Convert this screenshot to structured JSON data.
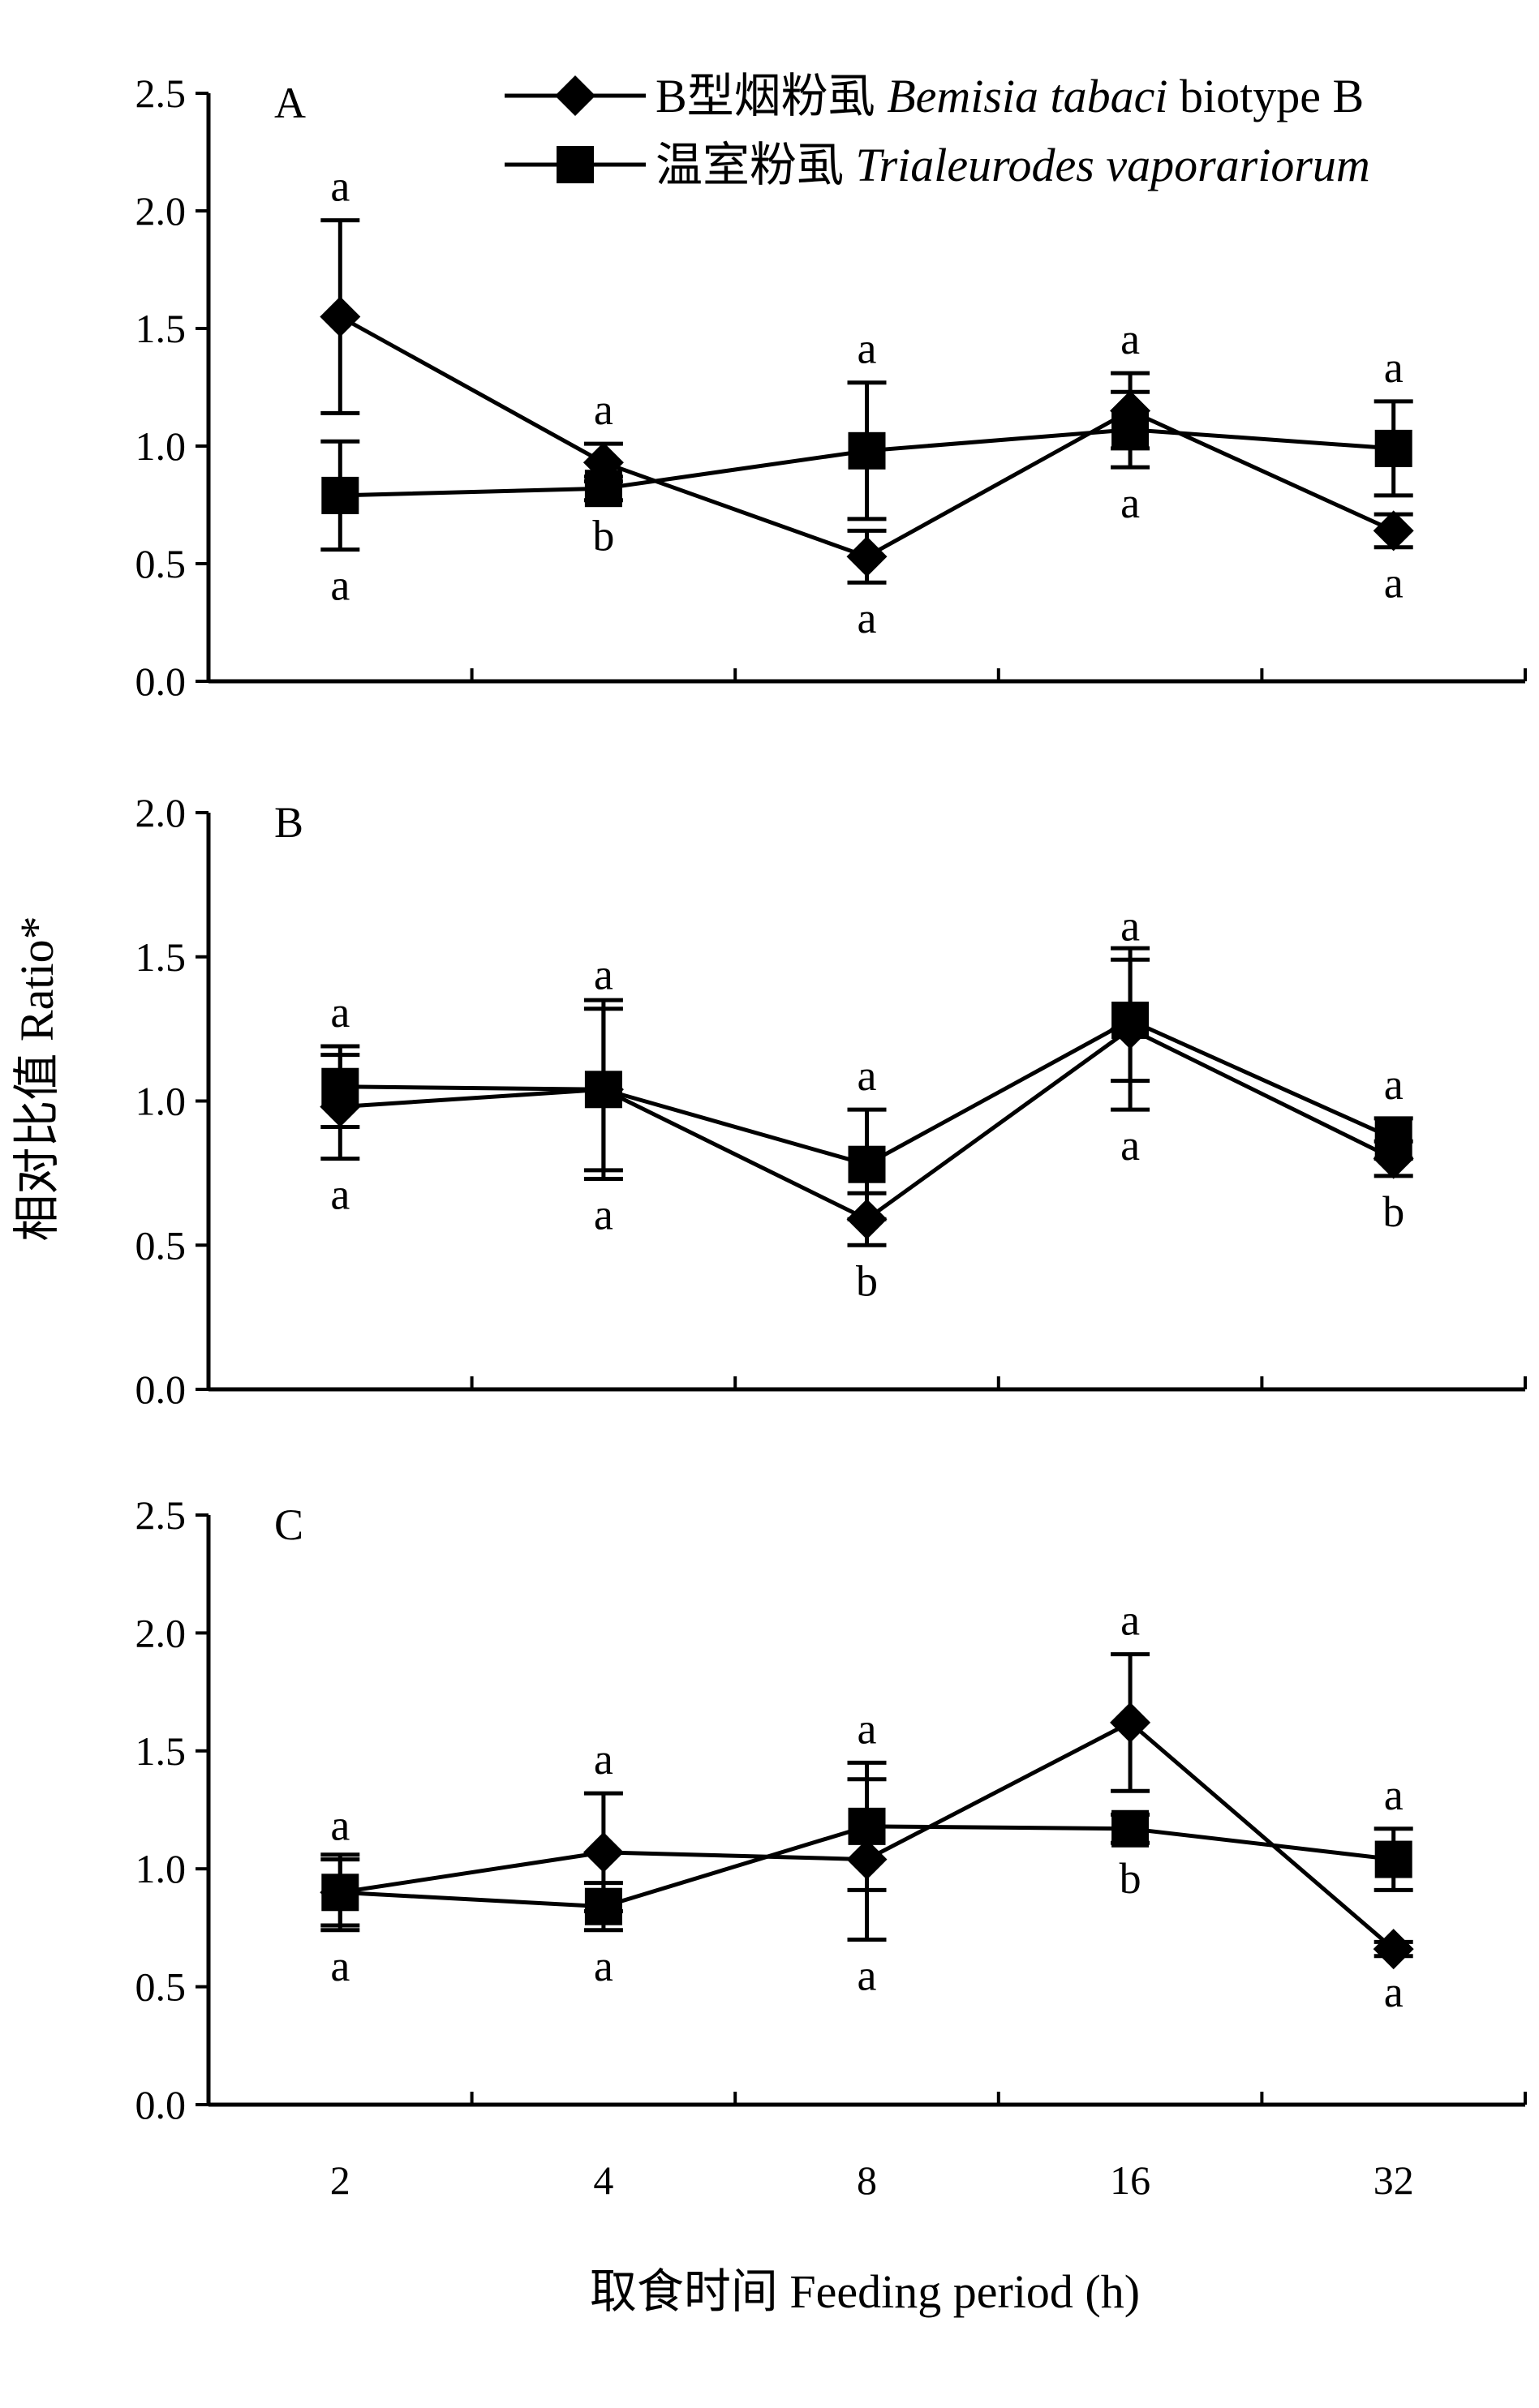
{
  "chart_data": {
    "type": "line",
    "xlabel": "取食时间 Feeding period (h)",
    "ylabel": "相对比值 Ratio*",
    "categories": [
      "2",
      "4",
      "8",
      "16",
      "32"
    ],
    "legend": {
      "placement": "top-right",
      "entries": [
        {
          "marker": "diamond",
          "cn": "B型烟粉虱",
          "latin": "Bemisia tabaci",
          "suffix": "biotype B"
        },
        {
          "marker": "square",
          "cn": "温室粉虱",
          "latin": "Trialeurodes vaporariorum",
          "suffix": ""
        }
      ]
    },
    "panels": [
      {
        "label": "A",
        "ylim": [
          0,
          2.5
        ],
        "yticks": [
          "0.0",
          "0.5",
          "1.0",
          "1.5",
          "2.0",
          "2.5"
        ],
        "series": [
          {
            "marker": "diamond",
            "values": [
              1.55,
              0.93,
              0.53,
              1.15,
              0.64
            ],
            "errors": [
              0.41,
              0.08,
              0.11,
              0.16,
              0.07
            ],
            "letters": [
              "a",
              "a",
              "a",
              "a",
              "a"
            ],
            "letter_side": [
              "above",
              "above",
              "below",
              "above",
              "below"
            ]
          },
          {
            "marker": "square",
            "values": [
              0.79,
              0.82,
              0.98,
              1.07,
              0.99
            ],
            "errors": [
              0.23,
              0.05,
              0.29,
              0.16,
              0.2
            ],
            "letters": [
              "a",
              "b",
              "a",
              "a",
              "a"
            ],
            "letter_side": [
              "below",
              "below",
              "above",
              "below",
              "above"
            ]
          }
        ]
      },
      {
        "label": "B",
        "ylim": [
          0,
          2.0
        ],
        "yticks": [
          "0.0",
          "0.5",
          "1.0",
          "1.5",
          "2.0"
        ],
        "series": [
          {
            "marker": "diamond",
            "values": [
              0.98,
              1.04,
              0.59,
              1.25,
              0.8
            ],
            "errors": [
              0.18,
              0.31,
              0.09,
              0.28,
              0.06
            ],
            "letters": [
              "a",
              "a",
              "b",
              "a",
              "b"
            ],
            "letter_side": [
              "below",
              "below",
              "below",
              "below",
              "below"
            ]
          },
          {
            "marker": "square",
            "values": [
              1.05,
              1.04,
              0.78,
              1.28,
              0.87
            ],
            "errors": [
              0.14,
              0.28,
              0.19,
              0.21,
              0.07
            ],
            "letters": [
              "a",
              "a",
              "a",
              "a",
              "a"
            ],
            "letter_side": [
              "above",
              "above",
              "above",
              "above",
              "above"
            ]
          }
        ]
      },
      {
        "label": "C",
        "ylim": [
          0,
          2.5
        ],
        "yticks": [
          "0.0",
          "0.5",
          "1.0",
          "1.5",
          "2.0",
          "2.5"
        ],
        "series": [
          {
            "marker": "diamond",
            "values": [
              0.9,
              1.07,
              1.04,
              1.62,
              0.66
            ],
            "errors": [
              0.14,
              0.25,
              0.34,
              0.29,
              0.03
            ],
            "letters": [
              "a",
              "a",
              "a",
              "a",
              "a"
            ],
            "letter_side": [
              "above",
              "above",
              "below",
              "above",
              "below"
            ]
          },
          {
            "marker": "square",
            "values": [
              0.9,
              0.84,
              1.18,
              1.17,
              1.04
            ],
            "errors": [
              0.16,
              0.1,
              0.27,
              0.06,
              0.13
            ],
            "letters": [
              "a",
              "a",
              "a",
              "b",
              "a"
            ],
            "letter_side": [
              "below",
              "below",
              "above",
              "below",
              "above"
            ]
          }
        ]
      }
    ]
  }
}
